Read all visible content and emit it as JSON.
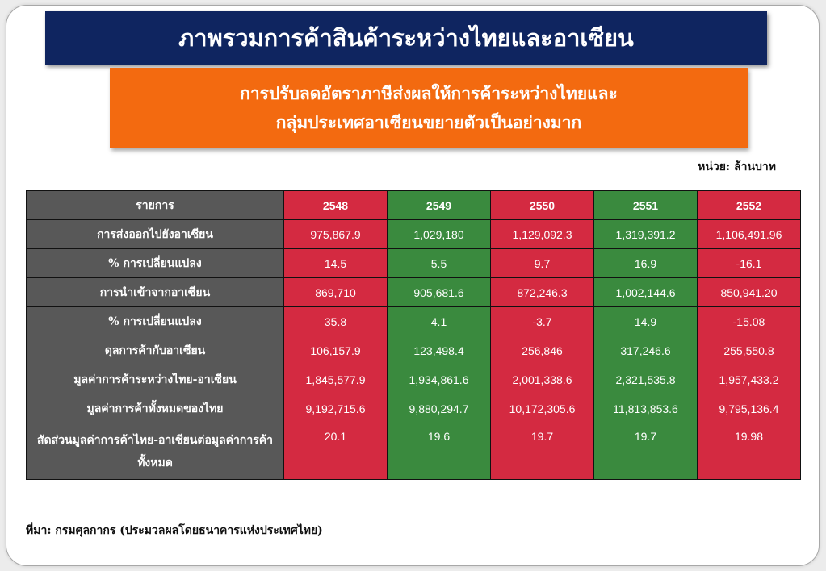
{
  "title": "ภาพรวมการค้าสินค้าระหว่างไทยและอาเซียน",
  "subtitle": {
    "line1": "การปรับลดอัตราภาษีส่งผลให้การค้าระหว่างไทยและ",
    "line2": "กลุ่มประเทศอาเซียนขยายตัวเป็นอย่างมาก"
  },
  "unit": "หน่วย: ล้านบาท",
  "colors": {
    "title_bg": "#0f2560",
    "subtitle_bg": "#f36a10",
    "label_bg": "#585858",
    "red": "#d42a41",
    "green": "#3a8a3e"
  },
  "table": {
    "header": {
      "label": "รายการ",
      "years": [
        "2548",
        "2549",
        "2550",
        "2551",
        "2552"
      ]
    },
    "rows": [
      {
        "label": "การส่งออกไปยังอาเซียน",
        "values": [
          "975,867.9",
          "1,029,180",
          "1,129,092.3",
          "1,319,391.2",
          "1,106,491.96"
        ]
      },
      {
        "label": "% การเปลี่ยนแปลง",
        "values": [
          "14.5",
          "5.5",
          "9.7",
          "16.9",
          "-16.1"
        ]
      },
      {
        "label": "การนำเข้าจากอาเซียน",
        "values": [
          "869,710",
          "905,681.6",
          "872,246.3",
          "1,002,144.6",
          "850,941.20"
        ]
      },
      {
        "label": "% การเปลี่ยนแปลง",
        "values": [
          "35.8",
          "4.1",
          "-3.7",
          "14.9",
          "-15.08"
        ]
      },
      {
        "label": "ดุลการค้ากับอาเซียน",
        "values": [
          "106,157.9",
          "123,498.4",
          "256,846",
          "317,246.6",
          "255,550.8"
        ]
      },
      {
        "label": "มูลค่าการค้าระหว่างไทย-อาเซียน",
        "values": [
          "1,845,577.9",
          "1,934,861.6",
          "2,001,338.6",
          "2,321,535.8",
          "1,957,433.2"
        ]
      },
      {
        "label": "มูลค่าการค้าทั้งหมดของไทย",
        "values": [
          "9,192,715.6",
          "9,880,294.7",
          "10,172,305.6",
          "11,813,853.6",
          "9,795,136.4"
        ]
      },
      {
        "label": "สัดส่วนมูลค่าการค้าไทย-อาเซียนต่อมูลค่าการค้าทั้งหมด",
        "values": [
          "20.1",
          "19.6",
          "19.7",
          "19.7",
          "19.98"
        ]
      }
    ]
  },
  "source": "ที่มา: กรมศุลกากร (ประมวลผลโดยธนาคารแห่งประเทศไทย)"
}
